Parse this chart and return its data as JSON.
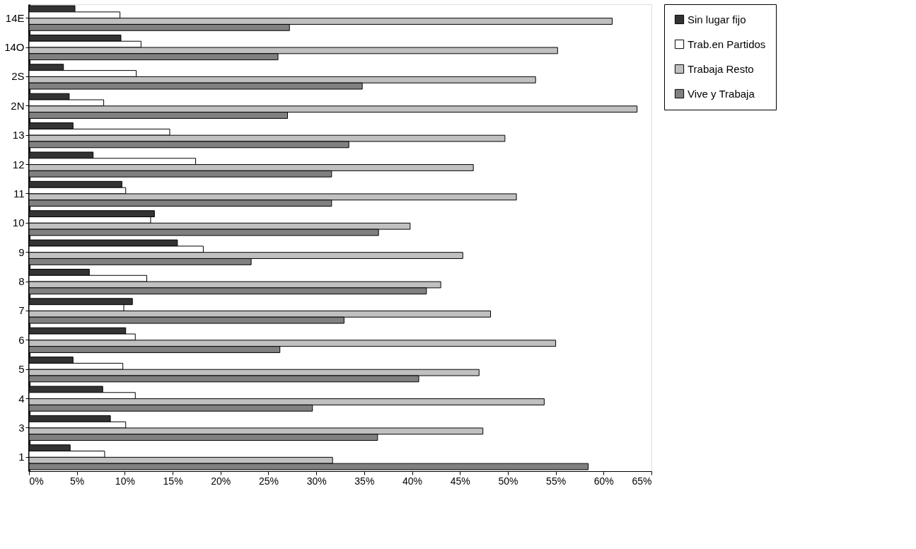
{
  "chart_data": {
    "type": "bar",
    "orientation": "horizontal",
    "categories": [
      "14E",
      "14O",
      "2S",
      "2N",
      "13",
      "12",
      "11",
      "10",
      "9",
      "8",
      "7",
      "6",
      "5",
      "4",
      "3",
      "1"
    ],
    "series": [
      {
        "name": "Sin lugar fijo",
        "color": "#333333",
        "values": [
          4.8,
          9.6,
          3.6,
          4.2,
          4.6,
          6.7,
          9.7,
          13.1,
          15.5,
          6.3,
          10.8,
          10.1,
          4.6,
          7.7,
          8.5,
          4.3
        ]
      },
      {
        "name": "Trab.en Partidos",
        "color": "#ffffff",
        "values": [
          9.5,
          11.7,
          11.2,
          7.8,
          14.7,
          17.4,
          10.1,
          12.7,
          18.2,
          12.3,
          9.9,
          11.1,
          9.8,
          11.1,
          10.1,
          7.9
        ]
      },
      {
        "name": "Trabaja Resto",
        "color": "#c0c0c0",
        "values": [
          60.9,
          55.2,
          52.9,
          63.5,
          49.7,
          46.4,
          50.9,
          39.8,
          45.3,
          43.0,
          48.2,
          55.0,
          47.0,
          53.8,
          47.4,
          31.7
        ]
      },
      {
        "name": "Vive y Trabaja",
        "color": "#808080",
        "values": [
          27.2,
          26.0,
          34.8,
          27.0,
          33.4,
          31.6,
          31.6,
          36.5,
          23.2,
          41.5,
          32.9,
          26.2,
          40.7,
          29.6,
          36.4,
          58.4
        ]
      }
    ],
    "xlim": [
      0,
      65
    ],
    "xticks": [
      {
        "value": 0,
        "label": "0%"
      },
      {
        "value": 5,
        "label": "5%"
      },
      {
        "value": 10,
        "label": "10%"
      },
      {
        "value": 15,
        "label": "15%"
      },
      {
        "value": 20,
        "label": "20%"
      },
      {
        "value": 25,
        "label": "25%"
      },
      {
        "value": 30,
        "label": "30%"
      },
      {
        "value": 35,
        "label": "35%"
      },
      {
        "value": 40,
        "label": "40%"
      },
      {
        "value": 45,
        "label": "45%"
      },
      {
        "value": 50,
        "label": "50%"
      },
      {
        "value": 55,
        "label": "55%"
      },
      {
        "value": 60,
        "label": "60%"
      },
      {
        "value": 65,
        "label": "65%"
      }
    ],
    "grid": false,
    "legend": "right"
  }
}
